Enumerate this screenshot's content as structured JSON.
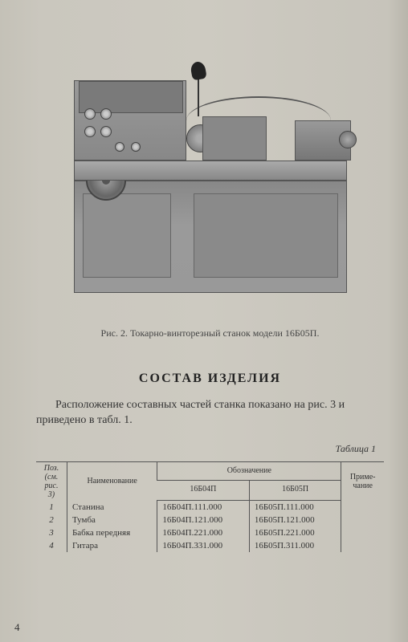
{
  "figure": {
    "caption": "Рис. 2. Токарно-винторезный станок модели 16Б05П."
  },
  "section": {
    "title": "СОСТАВ ИЗДЕЛИЯ",
    "body": "Расположение составных частей станка показано на рис. 3 и приведено в табл. 1."
  },
  "table": {
    "label": "Таблица 1",
    "header": {
      "pos": "Поз. (см. рис. 3)",
      "name": "Наименование",
      "designation": "Обозначение",
      "col_a": "16Б04П",
      "col_b": "16Б05П",
      "note": "Приме-чание"
    },
    "rows": [
      {
        "pos": "1",
        "name": "Станина",
        "a": "16Б04П.111.000",
        "b": "16Б05П.111.000",
        "note": ""
      },
      {
        "pos": "2",
        "name": "Тумба",
        "a": "16Б04П.121.000",
        "b": "16Б05П.121.000",
        "note": ""
      },
      {
        "pos": "3",
        "name": "Бабка передняя",
        "a": "16Б04П.221.000",
        "b": "16Б05П.221.000",
        "note": ""
      },
      {
        "pos": "4",
        "name": "Гитара",
        "a": "16Б04П.331.000",
        "b": "16Б05П.311.000",
        "note": ""
      }
    ]
  },
  "page_number": "4"
}
